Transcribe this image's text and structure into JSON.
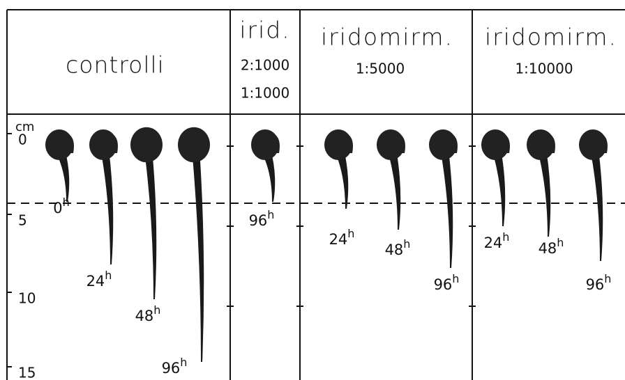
{
  "header": {
    "columns": [
      {
        "title": "controlli",
        "concentrations": []
      },
      {
        "title": "irid.",
        "concentrations": [
          "2:1000",
          "1:1000"
        ]
      },
      {
        "title": "iridomirm.",
        "concentrations": [
          "1:5000"
        ]
      },
      {
        "title": "iridomirm.",
        "concentrations": [
          "1:10000"
        ]
      }
    ]
  },
  "scale": {
    "unit": "cm",
    "ticks": [
      "0",
      "5",
      "10",
      "15"
    ]
  },
  "seedlings": [
    {
      "time": "0",
      "unit": "h"
    },
    {
      "time": "24",
      "unit": "h"
    },
    {
      "time": "48",
      "unit": "h"
    },
    {
      "time": "96",
      "unit": "h"
    },
    {
      "time": "96",
      "unit": "h"
    },
    {
      "time": "24",
      "unit": "h"
    },
    {
      "time": "48",
      "unit": "h"
    },
    {
      "time": "96",
      "unit": "h"
    },
    {
      "time": "24",
      "unit": "h"
    },
    {
      "time": "48",
      "unit": "h"
    },
    {
      "time": "96",
      "unit": "h"
    }
  ]
}
